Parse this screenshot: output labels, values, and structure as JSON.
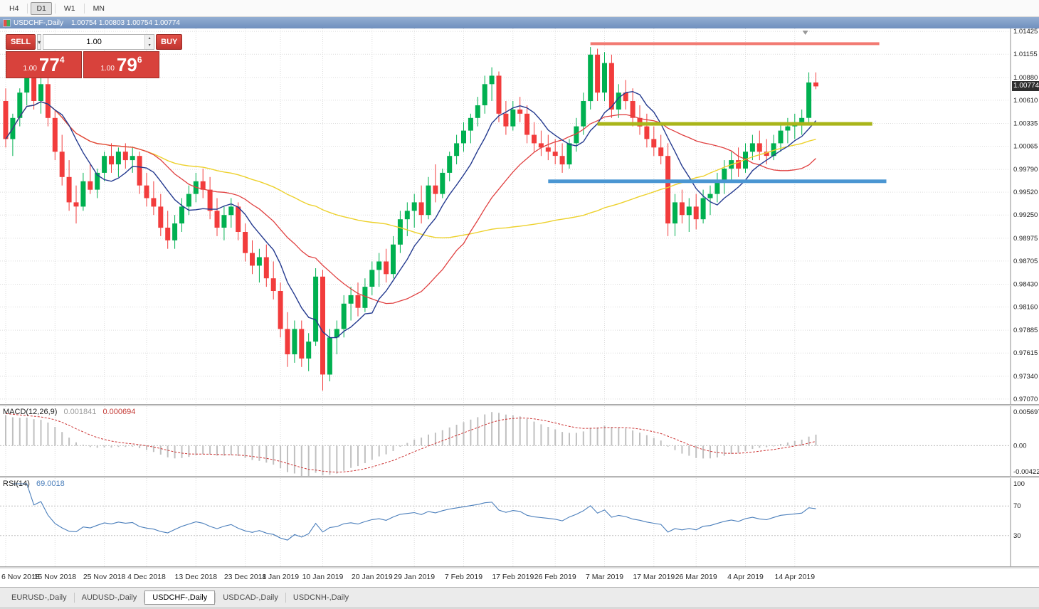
{
  "toolbar": {
    "timeframes": [
      {
        "label": "H4",
        "active": false
      },
      {
        "label": "D1",
        "active": true
      },
      {
        "label": "W1",
        "active": false
      },
      {
        "label": "MN",
        "active": false
      }
    ]
  },
  "title_bar": {
    "symbol": "USDCHF-,Daily",
    "quotes": "1.00754 1.00803 1.00754 1.00774"
  },
  "trade_panel": {
    "sell_label": "SELL",
    "buy_label": "BUY",
    "volume": "1.00",
    "bid": {
      "small": "1.00",
      "big": "77",
      "sup": "4"
    },
    "ask": {
      "small": "1.00",
      "big": "79",
      "sup": "6"
    }
  },
  "macd": {
    "label": "MACD(12,26,9)",
    "value_main": "0.001841",
    "value_signal": "0.000694",
    "axis_top": "0.005697",
    "axis_zero": "0.00",
    "axis_bottom": "-0.004226"
  },
  "rsi": {
    "label": "RSI(14)",
    "value": "69.0018",
    "axis": [
      "100",
      "70",
      "30"
    ]
  },
  "bottom_tabs": [
    {
      "label": "EURUSD-,Daily",
      "active": false
    },
    {
      "label": "AUDUSD-,Daily",
      "active": false
    },
    {
      "label": "USDCHF-,Daily",
      "active": true
    },
    {
      "label": "USDCAD-,Daily",
      "active": false
    },
    {
      "label": "USDCNH-,Daily",
      "active": false
    }
  ],
  "chart_data": {
    "type": "candlestick",
    "symbol": "USDCHF-",
    "timeframe": "Daily",
    "last_price": "1.00774",
    "price_range": {
      "top": 1.0146,
      "bottom": 0.9701
    },
    "y_axis_labels": [
      "1.01425",
      "1.01155",
      "1.00880",
      "1.00610",
      "1.00335",
      "1.00065",
      "0.99790",
      "0.99520",
      "0.99250",
      "0.98975",
      "0.98705",
      "0.98430",
      "0.98160",
      "0.97885",
      "0.97615",
      "0.97340",
      "0.97070"
    ],
    "x_axis_labels": [
      {
        "label": "6 Nov 2018",
        "index": 0
      },
      {
        "label": "15 Nov 2018",
        "index": 7
      },
      {
        "label": "25 Nov 2018",
        "index": 14
      },
      {
        "label": "4 Dec 2018",
        "index": 20
      },
      {
        "label": "13 Dec 2018",
        "index": 27
      },
      {
        "label": "23 Dec 2018",
        "index": 34
      },
      {
        "label": "1 Jan 2019",
        "index": 39
      },
      {
        "label": "10 Jan 2019",
        "index": 45
      },
      {
        "label": "20 Jan 2019",
        "index": 52
      },
      {
        "label": "29 Jan 2019",
        "index": 58
      },
      {
        "label": "7 Feb 2019",
        "index": 65
      },
      {
        "label": "17 Feb 2019",
        "index": 72
      },
      {
        "label": "26 Feb 2019",
        "index": 78
      },
      {
        "label": "7 Mar 2019",
        "index": 85
      },
      {
        "label": "17 Mar 2019",
        "index": 92
      },
      {
        "label": "26 Mar 2019",
        "index": 98
      },
      {
        "label": "4 Apr 2019",
        "index": 105
      },
      {
        "label": "14 Apr 2019",
        "index": 112
      }
    ],
    "colors": {
      "up": "#00b050",
      "down": "#f23c3c",
      "macd_hist": "#c0c0c0",
      "macd_signal": "#cc3434",
      "rsi": "#4a7ebb"
    },
    "overlays": [
      {
        "name": "ma-slow",
        "period": 55,
        "color": "#edd12c",
        "width": 1.4
      },
      {
        "name": "ma-mid",
        "period": 21,
        "color": "#e04040",
        "width": 1.3
      },
      {
        "name": "ma-fast",
        "period": 8,
        "color": "#243a8f",
        "width": 1.4
      }
    ],
    "hlines": [
      {
        "name": "resistance-line",
        "price": 1.0128,
        "from": 83,
        "to": 124,
        "color": "#f27a72",
        "width": 4
      },
      {
        "name": "mid-level-line",
        "price": 1.0033,
        "from": 84,
        "to": 123,
        "color": "#a9b519",
        "width": 5
      },
      {
        "name": "support-line",
        "price": 0.9965,
        "from": 77,
        "to": 125,
        "color": "#4a96d2",
        "width": 5
      }
    ],
    "indicators": {
      "macd": {
        "fast": 12,
        "slow": 26,
        "signal": 9
      },
      "rsi": {
        "period": 14
      }
    },
    "candles": [
      [
        1.006,
        1.0075,
        1.0005,
        1.0015
      ],
      [
        1.0015,
        1.0045,
        0.9995,
        1.004
      ],
      [
        1.004,
        1.0075,
        1.003,
        1.007
      ],
      [
        1.007,
        1.0095,
        1.0055,
        1.009
      ],
      [
        1.009,
        1.0095,
        1.005,
        1.006
      ],
      [
        1.006,
        1.009,
        1.0045,
        1.008
      ],
      [
        1.008,
        1.009,
        1.003,
        1.004
      ],
      [
        1.004,
        1.005,
        0.999,
        1.0
      ],
      [
        1.0,
        1.002,
        0.996,
        0.997
      ],
      [
        0.997,
        0.999,
        0.993,
        0.994
      ],
      [
        0.994,
        0.996,
        0.9915,
        0.9935
      ],
      [
        0.9935,
        0.9975,
        0.993,
        0.9965
      ],
      [
        0.9965,
        0.9985,
        0.995,
        0.9955
      ],
      [
        0.9955,
        0.998,
        0.9945,
        0.9975
      ],
      [
        0.9975,
        1.0,
        0.9965,
        0.9995
      ],
      [
        0.9995,
        1.001,
        0.9975,
        0.9985
      ],
      [
        0.9985,
        1.0005,
        0.997,
        1.0
      ],
      [
        1.0,
        1.001,
        0.998,
        0.999
      ],
      [
        0.999,
        1.0005,
        0.9975,
        0.9995
      ],
      [
        0.9995,
        1.0,
        0.995,
        0.996
      ],
      [
        0.996,
        0.9975,
        0.9935,
        0.9945
      ],
      [
        0.9945,
        0.9965,
        0.9925,
        0.9935
      ],
      [
        0.9935,
        0.995,
        0.99,
        0.991
      ],
      [
        0.991,
        0.993,
        0.9885,
        0.9895
      ],
      [
        0.9895,
        0.9925,
        0.9885,
        0.9915
      ],
      [
        0.9915,
        0.9945,
        0.9905,
        0.9935
      ],
      [
        0.9935,
        0.996,
        0.9925,
        0.995
      ],
      [
        0.995,
        0.9975,
        0.994,
        0.9965
      ],
      [
        0.9965,
        0.998,
        0.9945,
        0.9955
      ],
      [
        0.9955,
        0.997,
        0.992,
        0.993
      ],
      [
        0.993,
        0.9945,
        0.99,
        0.991
      ],
      [
        0.991,
        0.9935,
        0.9895,
        0.9925
      ],
      [
        0.9925,
        0.9945,
        0.991,
        0.9935
      ],
      [
        0.9935,
        0.994,
        0.9895,
        0.9905
      ],
      [
        0.9905,
        0.9915,
        0.987,
        0.988
      ],
      [
        0.988,
        0.9895,
        0.9855,
        0.9865
      ],
      [
        0.9865,
        0.9885,
        0.9845,
        0.9875
      ],
      [
        0.9875,
        0.989,
        0.984,
        0.985
      ],
      [
        0.985,
        0.987,
        0.9825,
        0.9835
      ],
      [
        0.9835,
        0.9845,
        0.978,
        0.979
      ],
      [
        0.979,
        0.981,
        0.9745,
        0.976
      ],
      [
        0.976,
        0.98,
        0.975,
        0.979
      ],
      [
        0.979,
        0.98,
        0.9745,
        0.9755
      ],
      [
        0.9755,
        0.9785,
        0.974,
        0.9775
      ],
      [
        0.9775,
        0.9862,
        0.977,
        0.9852
      ],
      [
        0.9852,
        0.986,
        0.9717,
        0.9736
      ],
      [
        0.9736,
        0.979,
        0.9728,
        0.978
      ],
      [
        0.978,
        0.98,
        0.976,
        0.979
      ],
      [
        0.979,
        0.983,
        0.978,
        0.982
      ],
      [
        0.982,
        0.984,
        0.98,
        0.983
      ],
      [
        0.983,
        0.9845,
        0.9805,
        0.9815
      ],
      [
        0.9815,
        0.985,
        0.981,
        0.984
      ],
      [
        0.984,
        0.987,
        0.983,
        0.986
      ],
      [
        0.986,
        0.988,
        0.984,
        0.987
      ],
      [
        0.987,
        0.9885,
        0.9845,
        0.9855
      ],
      [
        0.9855,
        0.99,
        0.985,
        0.989
      ],
      [
        0.989,
        0.993,
        0.988,
        0.992
      ],
      [
        0.992,
        0.994,
        0.99,
        0.993
      ],
      [
        0.993,
        0.995,
        0.991,
        0.994
      ],
      [
        0.994,
        0.996,
        0.9915,
        0.9925
      ],
      [
        0.9925,
        0.997,
        0.992,
        0.996
      ],
      [
        0.996,
        0.9985,
        0.994,
        0.995
      ],
      [
        0.995,
        0.998,
        0.9945,
        0.9975
      ],
      [
        0.9975,
        1.0,
        0.9965,
        0.9995
      ],
      [
        0.9995,
        1.002,
        0.9985,
        1.001
      ],
      [
        1.001,
        1.0035,
        1.0,
        1.0025
      ],
      [
        1.0025,
        1.0045,
        1.001,
        1.004
      ],
      [
        1.004,
        1.0065,
        1.003,
        1.0055
      ],
      [
        1.0055,
        1.009,
        1.0045,
        1.008
      ],
      [
        1.008,
        1.01,
        1.006,
        1.009
      ],
      [
        1.009,
        1.0095,
        1.0035,
        1.0045
      ],
      [
        1.0045,
        1.006,
        1.002,
        1.003
      ],
      [
        1.003,
        1.006,
        1.0025,
        1.005
      ],
      [
        1.005,
        1.0065,
        1.0035,
        1.0045
      ],
      [
        1.0045,
        1.0055,
        1.001,
        1.002
      ],
      [
        1.002,
        1.0035,
        1.0,
        1.001
      ],
      [
        1.001,
        1.0025,
        0.9995,
        1.0005
      ],
      [
        1.0005,
        1.002,
        0.999,
        1.0
      ],
      [
        1.0,
        1.0015,
        0.9985,
        0.9995
      ],
      [
        0.9995,
        1.001,
        0.9975,
        0.9985
      ],
      [
        0.9985,
        1.0015,
        0.998,
        1.001
      ],
      [
        1.001,
        1.004,
        1.0,
        1.003
      ],
      [
        1.003,
        1.007,
        1.002,
        1.006
      ],
      [
        1.006,
        1.0124,
        1.005,
        1.0115
      ],
      [
        1.0115,
        1.0122,
        1.006,
        1.007
      ],
      [
        1.007,
        1.0118,
        1.006,
        1.0105
      ],
      [
        1.0105,
        1.0115,
        1.004,
        1.005
      ],
      [
        1.005,
        1.008,
        1.004,
        1.007
      ],
      [
        1.007,
        1.0085,
        1.005,
        1.006
      ],
      [
        1.006,
        1.0075,
        1.003,
        1.004
      ],
      [
        1.004,
        1.0055,
        1.002,
        1.003
      ],
      [
        1.003,
        1.0045,
        1.0005,
        1.0015
      ],
      [
        1.0015,
        1.003,
        0.9995,
        1.0005
      ],
      [
        1.0005,
        1.002,
        0.9985,
        0.9995
      ],
      [
        0.9995,
        1.001,
        0.99,
        0.9915
      ],
      [
        0.9915,
        0.995,
        0.99,
        0.994
      ],
      [
        0.994,
        0.9955,
        0.9915,
        0.9925
      ],
      [
        0.9925,
        0.9945,
        0.9905,
        0.9935
      ],
      [
        0.9935,
        0.995,
        0.9908,
        0.992
      ],
      [
        0.992,
        0.9955,
        0.9915,
        0.9945
      ],
      [
        0.9945,
        0.996,
        0.9925,
        0.995
      ],
      [
        0.995,
        0.9975,
        0.994,
        0.9965
      ],
      [
        0.9965,
        0.999,
        0.995,
        0.998
      ],
      [
        0.998,
        1.0,
        0.9965,
        0.999
      ],
      [
        0.999,
        1.0005,
        0.997,
        0.998
      ],
      [
        0.998,
        1.001,
        0.9975,
        1.0
      ],
      [
        1.0,
        1.002,
        0.999,
        1.001
      ],
      [
        1.001,
        1.0025,
        0.999,
        1.0
      ],
      [
        1.0,
        1.0015,
        0.9985,
        0.9995
      ],
      [
        0.9995,
        1.002,
        0.999,
        1.001
      ],
      [
        1.001,
        1.0035,
        1.0,
        1.0025
      ],
      [
        1.0025,
        1.004,
        1.001,
        1.003
      ],
      [
        1.003,
        1.0045,
        1.0015,
        1.0035
      ],
      [
        1.0035,
        1.005,
        1.002,
        1.004
      ],
      [
        1.004,
        1.0094,
        1.0035,
        1.0082
      ],
      [
        1.0082,
        1.0094,
        1.0074,
        1.00774
      ]
    ]
  }
}
